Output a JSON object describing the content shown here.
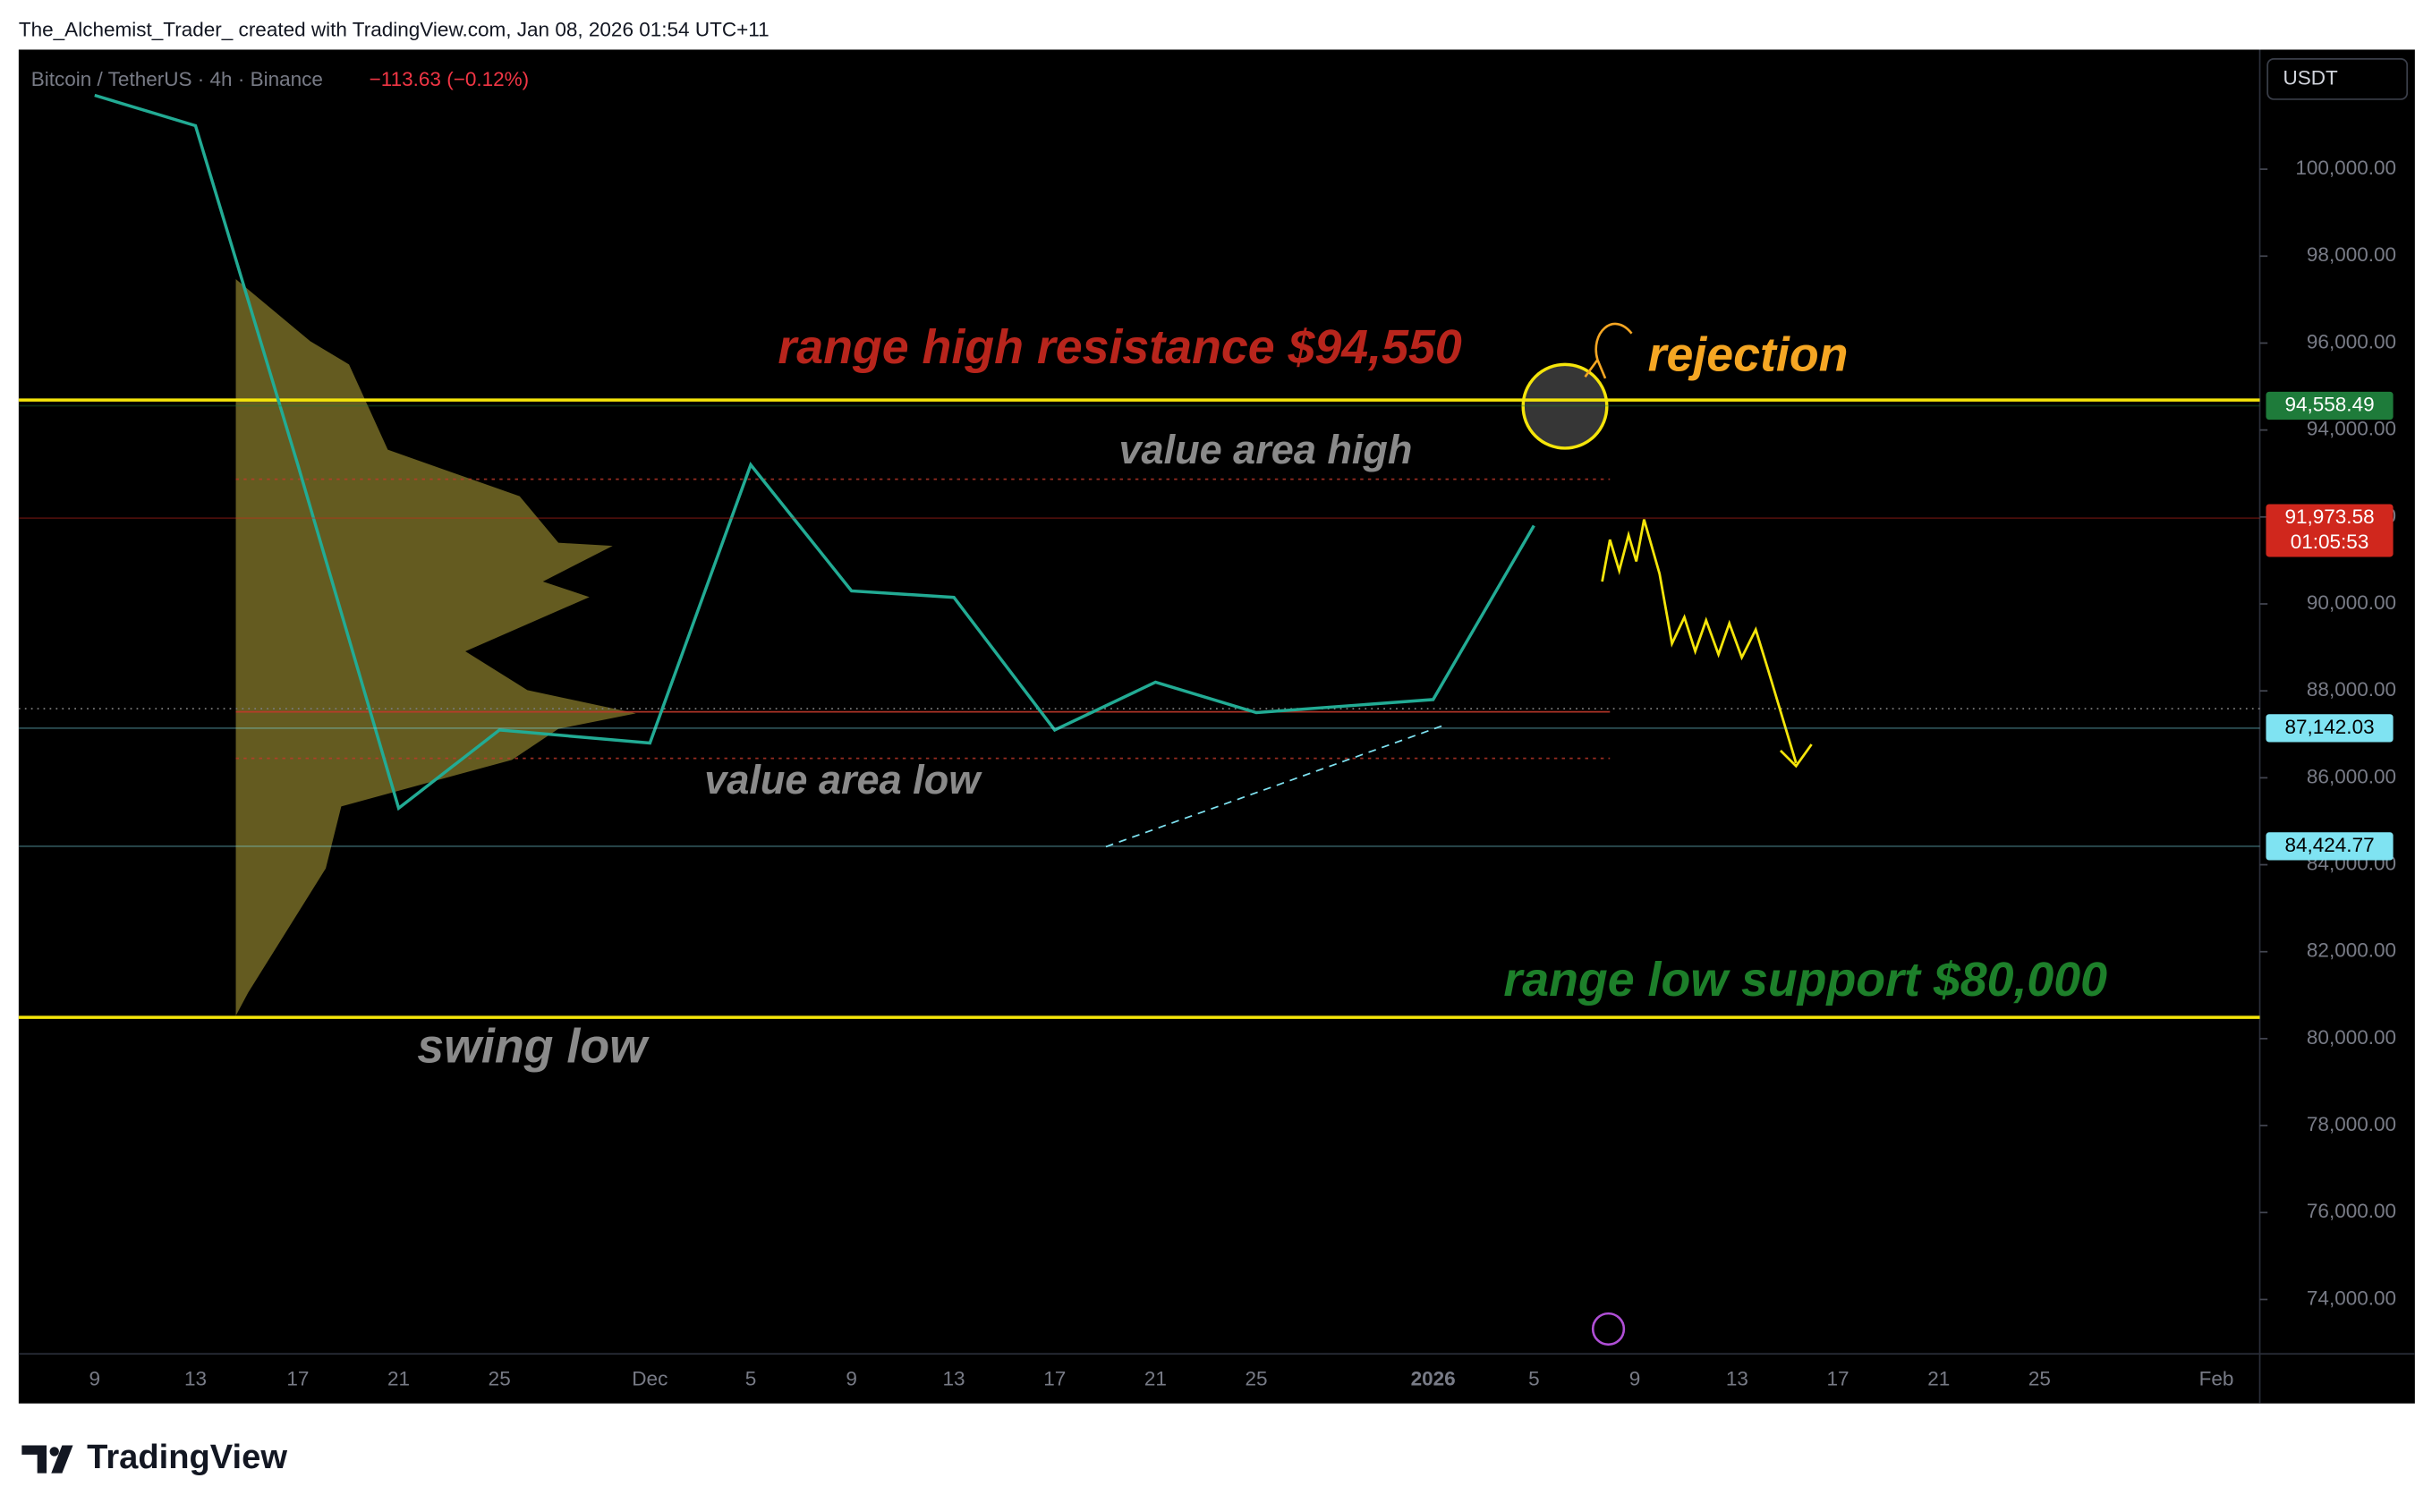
{
  "header": {
    "credit": "The_Alchemist_Trader_ created with TradingView.com, Jan 08, 2026 01:54 UTC+11",
    "symbol": "Bitcoin / TetherUS · 4h · Binance",
    "change": "−113.63 (−0.12%)",
    "currency": "USDT"
  },
  "chart_data": {
    "type": "line",
    "color": "#22ab94",
    "categories": [
      "9",
      "13",
      "17",
      "21",
      "25",
      "Dec",
      "5",
      "9",
      "13",
      "17",
      "21",
      "25",
      "2026",
      "5",
      "9",
      "13",
      "17",
      "21",
      "25",
      "Feb"
    ],
    "values": [
      101700,
      101000,
      93200,
      85300,
      87100,
      86800,
      93200,
      90300,
      90150,
      87100,
      88200,
      87500,
      87800,
      91800,
      null,
      null,
      null,
      null,
      null,
      null
    ],
    "ylim": [
      72750,
      102750
    ],
    "yticks": [
      {
        "value": 74000,
        "label": "74,000.00"
      },
      {
        "value": 76000,
        "label": "76,000.00"
      },
      {
        "value": 78000,
        "label": "78,000.00"
      },
      {
        "value": 80000,
        "label": "80,000.00"
      },
      {
        "value": 82000,
        "label": "82,000.00"
      },
      {
        "value": 84000,
        "label": "84,000.00"
      },
      {
        "value": 86000,
        "label": "86,000.00"
      },
      {
        "value": 88000,
        "label": "88,000.00"
      },
      {
        "value": 90000,
        "label": "90,000.00"
      },
      {
        "value": 92000,
        "label": "92,000.00"
      },
      {
        "value": 94000,
        "label": "94,000.00"
      },
      {
        "value": 96000,
        "label": "96,000.00"
      },
      {
        "value": 98000,
        "label": "98,000.00"
      },
      {
        "value": 100000,
        "label": "100,000.00"
      }
    ],
    "grid": false,
    "levels": [
      {
        "value": 94690,
        "color": "#f5e50a"
      },
      {
        "value": 80490,
        "color": "#f5e50a"
      }
    ],
    "price_labels": [
      {
        "value": 94558.49,
        "label": "94,558.49",
        "color": "#1e7b3a",
        "text_color": "#ffffff"
      },
      {
        "value": 91973.58,
        "label": "91,973.58",
        "countdown": "01:05:53",
        "color": "#d0271d",
        "text_color": "#ffffff"
      },
      {
        "value": 87142.03,
        "label": "87,142.03",
        "color": "#7fe3f2",
        "text_color": "#000000"
      },
      {
        "value": 84424.77,
        "label": "84,424.77",
        "color": "#7fe3f2",
        "text_color": "#000000"
      }
    ],
    "annotations": [
      {
        "text": "range high resistance $94,550",
        "color": "#b8251c"
      },
      {
        "text": "rejection",
        "color": "#f5a623"
      },
      {
        "text": "value area high",
        "color": "#8a8a8a"
      },
      {
        "text": "value area low",
        "color": "#8a8a8a"
      },
      {
        "text": "range low support $80,000",
        "color": "#1d7f2a"
      },
      {
        "text": "swing low",
        "color": "#8a8a8a"
      }
    ]
  },
  "footer": {
    "brand": "TradingView"
  }
}
